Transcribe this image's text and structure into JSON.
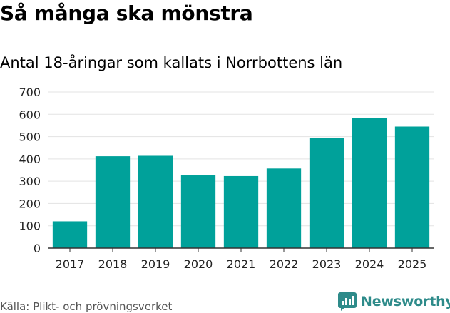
{
  "title": "Så många ska mönstra",
  "subtitle": "Antal 18-åringar som kallats i Norrbottens län",
  "source": "Källa: Plikt- och prövningsverket",
  "brand": {
    "name": "Newsworthy",
    "icon": "newsworthy-logo-icon",
    "color": "#2e8b8a"
  },
  "colors": {
    "bar": "#00a19a",
    "grid": "#e3e3e3",
    "axis": "#333333"
  },
  "chart_data": {
    "type": "bar",
    "categories": [
      "2017",
      "2018",
      "2019",
      "2020",
      "2021",
      "2022",
      "2023",
      "2024",
      "2025"
    ],
    "values": [
      120,
      412,
      414,
      326,
      323,
      357,
      494,
      584,
      545
    ],
    "yticks": [
      "0",
      "100",
      "200",
      "300",
      "400",
      "500",
      "600",
      "700"
    ],
    "ylim": [
      0,
      700
    ],
    "grid": true,
    "xlabel": "",
    "ylabel": ""
  }
}
